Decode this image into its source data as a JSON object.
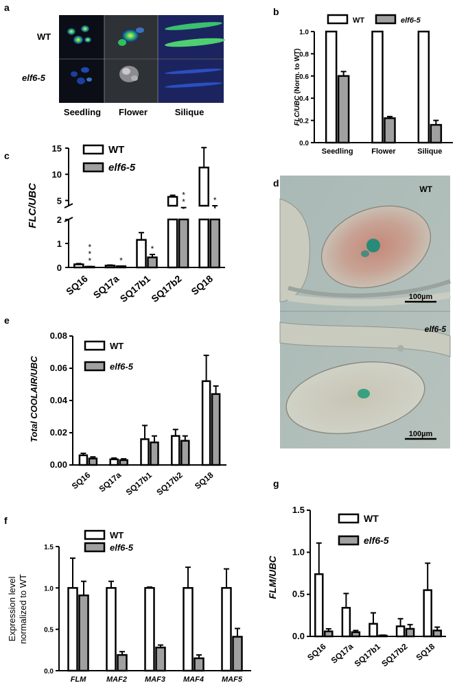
{
  "figure": {
    "panel_letters": {
      "a": "a",
      "b": "b",
      "c": "c",
      "d": "d",
      "e": "e",
      "f": "f",
      "g": "g"
    }
  },
  "panel_a": {
    "row_labels": [
      "WT",
      "elf6-5"
    ],
    "column_labels": [
      "Seedling",
      "Flower",
      "Silique"
    ]
  },
  "panel_d": {
    "labels": [
      "WT",
      "elf6-5"
    ],
    "scale_bars": [
      "100µm",
      "100µm"
    ]
  },
  "colors": {
    "wt_fill": "#ffffff",
    "mutant_fill": "#a0a0a0",
    "stroke": "#000000"
  },
  "chart_data": [
    {
      "panel": "b",
      "type": "bar",
      "ylabel": "FLC/UBC (Norm. to WT)",
      "ylabel_italic_part": "FLC/UBC",
      "ylabel_plain_part": " (Norm. to WT)",
      "categories": [
        "Seedling",
        "Flower",
        "Silique"
      ],
      "series": [
        {
          "name": "WT",
          "values": [
            1.0,
            1.0,
            1.0
          ],
          "errors": [
            0,
            0,
            0
          ]
        },
        {
          "name": "elf6-5",
          "values": [
            0.6,
            0.22,
            0.16
          ],
          "errors": [
            0.04,
            0.015,
            0.04
          ]
        }
      ],
      "ylim": [
        0,
        1.0
      ],
      "yticks": [
        "0.0",
        "0.2",
        "0.4",
        "0.6",
        "0.8",
        "1.0"
      ],
      "legend_position": "top"
    },
    {
      "panel": "c",
      "type": "bar",
      "ylabel": "FLC/UBC",
      "categories": [
        "SQ16",
        "SQ17a",
        "SQ17b1",
        "SQ17b2",
        "SQ18"
      ],
      "series": [
        {
          "name": "WT",
          "values": [
            0.13,
            0.08,
            1.15,
            5.7,
            11.3
          ],
          "errors": [
            0.03,
            0.02,
            0.3,
            0.3,
            3.8
          ]
        },
        {
          "name": "elf6-5",
          "values": [
            0.03,
            0.05,
            0.42,
            3.4,
            3.5
          ],
          "errors": [
            0.01,
            0.01,
            0.12,
            0.25,
            0.5
          ]
        }
      ],
      "broken_axis": {
        "lower": [
          0,
          2
        ],
        "upper": [
          4,
          15
        ]
      },
      "yticks_lower": [
        "0",
        "1",
        "2"
      ],
      "yticks_upper": [
        "5",
        "10",
        "15"
      ],
      "significance": [
        "***",
        "*",
        "*",
        "**",
        "*"
      ],
      "legend_position": "top-left"
    },
    {
      "panel": "e",
      "type": "bar",
      "ylabel": "Total COOLAIR/UBC",
      "categories": [
        "SQ16",
        "SQ17a",
        "SQ17b1",
        "SQ17b2",
        "SQ18"
      ],
      "series": [
        {
          "name": "WT",
          "values": [
            0.006,
            0.0035,
            0.016,
            0.018,
            0.052
          ],
          "errors": [
            0.0012,
            0.0008,
            0.0085,
            0.004,
            0.016
          ]
        },
        {
          "name": "elf6-5",
          "values": [
            0.004,
            0.003,
            0.014,
            0.015,
            0.044
          ],
          "errors": [
            0.001,
            0.0008,
            0.004,
            0.003,
            0.005
          ]
        }
      ],
      "ylim": [
        0,
        0.08
      ],
      "yticks": [
        "0.00",
        "0.02",
        "0.04",
        "0.06",
        "0.08"
      ],
      "legend_position": "top-left"
    },
    {
      "panel": "f",
      "type": "bar",
      "ylabel_lines": [
        "Expression level",
        "normalized to WT"
      ],
      "categories": [
        "FLM",
        "MAF2",
        "MAF3",
        "MAF4",
        "MAF5"
      ],
      "series": [
        {
          "name": "WT",
          "values": [
            1.0,
            1.0,
            1.0,
            1.0,
            1.0
          ],
          "errors": [
            0.36,
            0.08,
            0.01,
            0.25,
            0.23
          ]
        },
        {
          "name": "elf6-5",
          "values": [
            0.91,
            0.19,
            0.28,
            0.15,
            0.41
          ],
          "errors": [
            0.17,
            0.04,
            0.03,
            0.04,
            0.1
          ]
        }
      ],
      "ylim": [
        0,
        1.5
      ],
      "yticks": [
        "0.0",
        "0.5",
        "1.0",
        "1.5"
      ],
      "legend_position": "top"
    },
    {
      "panel": "g",
      "type": "bar",
      "ylabel": "FLM/UBC",
      "categories": [
        "SQ16",
        "SQ17a",
        "SQ17b1",
        "SQ17b2",
        "SQ18"
      ],
      "series": [
        {
          "name": "WT",
          "values": [
            0.74,
            0.34,
            0.15,
            0.12,
            0.55
          ],
          "errors": [
            0.37,
            0.17,
            0.13,
            0.09,
            0.32
          ]
        },
        {
          "name": "elf6-5",
          "values": [
            0.06,
            0.05,
            0.01,
            0.09,
            0.07
          ],
          "errors": [
            0.03,
            0.02,
            0.005,
            0.05,
            0.04
          ]
        }
      ],
      "ylim": [
        0,
        1.5
      ],
      "yticks": [
        "0.0",
        "0.5",
        "1.0",
        "1.5"
      ],
      "legend_position": "top"
    }
  ]
}
